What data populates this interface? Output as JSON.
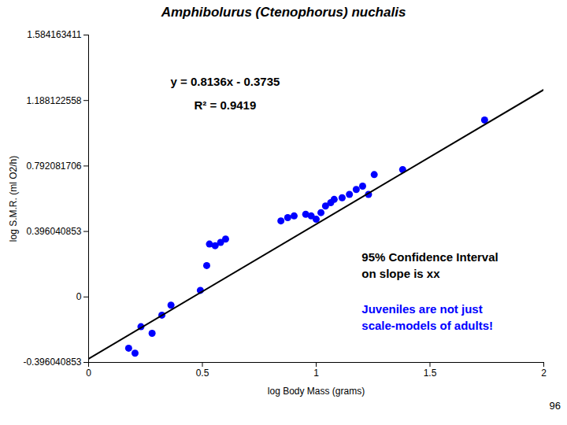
{
  "chart_data": {
    "type": "scatter",
    "title": "Amphibolurus (Ctenophorus) nuchalis",
    "xlabel": "log Body Mass (grams)",
    "ylabel": "log S.M.R. (ml O2/h)",
    "xlim": [
      0,
      2
    ],
    "ylim": [
      -0.396040853,
      1.584163411
    ],
    "xticks": [
      0,
      0.5,
      1,
      1.5,
      2
    ],
    "yticks": [
      -0.396040853,
      0,
      0.396040853,
      0.792081706,
      1.188122558,
      1.584163411
    ],
    "grid": false,
    "series": [
      {
        "type": "scatter",
        "color": "#0000FF",
        "marker": "circle",
        "x": [
          0.176,
          0.204,
          0.23,
          0.279,
          0.322,
          0.362,
          0.491,
          0.519,
          0.531,
          0.556,
          0.58,
          0.602,
          0.845,
          0.875,
          0.903,
          0.954,
          0.978,
          1.0,
          1.021,
          1.041,
          1.064,
          1.079,
          1.114,
          1.146,
          1.176,
          1.204,
          1.23,
          1.255,
          1.38,
          1.74
        ],
        "values": [
          -0.31,
          -0.34,
          -0.18,
          -0.22,
          -0.11,
          -0.05,
          0.04,
          0.19,
          0.32,
          0.31,
          0.33,
          0.35,
          0.46,
          0.48,
          0.49,
          0.5,
          0.49,
          0.47,
          0.51,
          0.55,
          0.57,
          0.59,
          0.6,
          0.62,
          0.65,
          0.67,
          0.62,
          0.74,
          0.77,
          1.07
        ]
      },
      {
        "type": "line",
        "color": "#000000",
        "line_style": "solid",
        "x": [
          0,
          2
        ],
        "values": [
          -0.3735,
          1.2537
        ]
      }
    ],
    "annotations": [
      {
        "text": "y = 0.8136x - 0.3735",
        "color": "black"
      },
      {
        "text": "R² = 0.9419",
        "color": "black"
      },
      {
        "text": "95% Confidence Interval\non slope is xx",
        "color": "black"
      },
      {
        "text": "Juveniles are not just\nscale-models of adults!",
        "color": "blue"
      },
      {
        "text": "96",
        "color": "black"
      }
    ]
  }
}
